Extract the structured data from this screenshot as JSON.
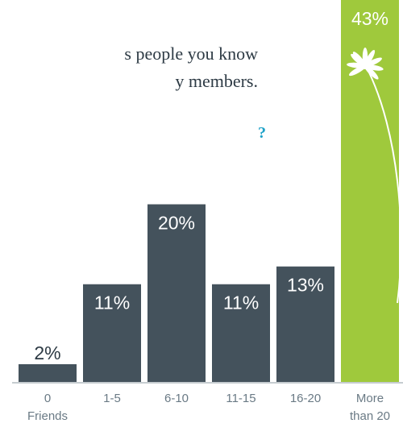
{
  "intro": {
    "line1": "s people you know",
    "line2": "y members."
  },
  "question_glyph": "?",
  "chart_data": {
    "type": "bar",
    "categories": [
      [
        "0",
        "Friends"
      ],
      [
        "1-5"
      ],
      [
        "6-10"
      ],
      [
        "11-15"
      ],
      [
        "16-20"
      ],
      [
        "More",
        "than 20"
      ]
    ],
    "values": [
      2,
      11,
      20,
      11,
      13,
      43
    ],
    "value_labels": [
      "2%",
      "11%",
      "20%",
      "11%",
      "13%",
      "43%"
    ],
    "highlight_index": 5,
    "ylim": [
      0,
      43
    ],
    "title": "",
    "xlabel": "",
    "ylabel": "",
    "colors": {
      "bar": "#44525c",
      "highlight": "#9fc93c",
      "label_on_bar": "#ffffff",
      "label_above": "#2d3a44",
      "baseline": "#8e9aa2",
      "flower": "#ffffff"
    },
    "icons": {
      "highlight": "flower-icon"
    }
  }
}
